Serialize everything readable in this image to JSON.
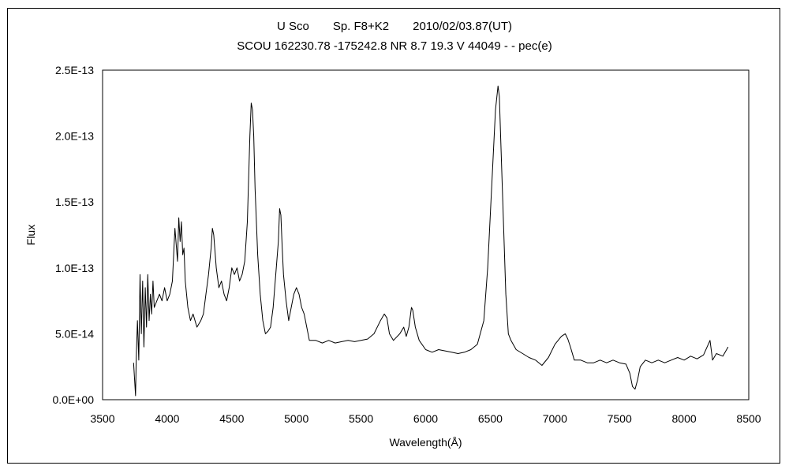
{
  "chart_data": {
    "type": "line",
    "title": "U Sco　　Sp. F8+K2　　2010/02/03.87(UT)",
    "subtitle": "SCOU 162230.78 -175242.8 NR 8.7 19.3 V 44049 - - pec(e)",
    "xlabel": "Wavelength(Å)",
    "ylabel": "Flux",
    "xlim": [
      3500,
      8500
    ],
    "ylim": [
      0,
      2.5e-13
    ],
    "grid": false,
    "legend": "none",
    "line_color": "#000000",
    "x_ticks": [
      "3500",
      "4000",
      "4500",
      "5000",
      "5500",
      "6000",
      "6500",
      "7000",
      "7500",
      "8000",
      "8500"
    ],
    "y_ticks": [
      "0.0E+00",
      "5.0E-14",
      "1.0E-13",
      "1.5E-13",
      "2.0E-13",
      "2.5E-13"
    ],
    "series": [
      {
        "x": [
          3740,
          3755,
          3760,
          3770,
          3780,
          3790,
          3800,
          3810,
          3820,
          3830,
          3840,
          3850,
          3860,
          3870,
          3880,
          3890,
          3900,
          3920,
          3940,
          3960,
          3980,
          4000,
          4020,
          4040,
          4060,
          4080,
          4090,
          4100,
          4110,
          4120,
          4130,
          4140,
          4160,
          4180,
          4200,
          4230,
          4260,
          4280,
          4300,
          4320,
          4340,
          4350,
          4360,
          4380,
          4400,
          4420,
          4440,
          4460,
          4480,
          4500,
          4520,
          4540,
          4560,
          4580,
          4600,
          4620,
          4640,
          4650,
          4660,
          4670,
          4680,
          4700,
          4720,
          4740,
          4760,
          4780,
          4800,
          4820,
          4840,
          4860,
          4870,
          4880,
          4890,
          4900,
          4920,
          4940,
          4960,
          4980,
          5000,
          5020,
          5040,
          5060,
          5080,
          5100,
          5150,
          5200,
          5250,
          5300,
          5350,
          5400,
          5450,
          5500,
          5550,
          5600,
          5650,
          5680,
          5700,
          5720,
          5750,
          5800,
          5830,
          5850,
          5870,
          5890,
          5900,
          5920,
          5950,
          6000,
          6050,
          6100,
          6150,
          6200,
          6250,
          6300,
          6350,
          6400,
          6450,
          6480,
          6500,
          6520,
          6540,
          6560,
          6570,
          6580,
          6600,
          6620,
          6640,
          6660,
          6700,
          6750,
          6800,
          6850,
          6900,
          6950,
          7000,
          7050,
          7080,
          7100,
          7120,
          7150,
          7200,
          7250,
          7300,
          7350,
          7400,
          7450,
          7500,
          7550,
          7580,
          7600,
          7620,
          7640,
          7660,
          7700,
          7750,
          7800,
          7850,
          7900,
          7950,
          8000,
          8050,
          8100,
          8150,
          8200,
          8220,
          8250,
          8300,
          8340
        ],
        "y": [
          2.8e-14,
          3e-15,
          3e-14,
          6e-14,
          3e-14,
          9.5e-14,
          5e-14,
          9e-14,
          4e-14,
          8.5e-14,
          5.5e-14,
          9.5e-14,
          6e-14,
          8e-14,
          6.5e-14,
          9e-14,
          7e-14,
          7.5e-14,
          8e-14,
          7.5e-14,
          8.5e-14,
          7.5e-14,
          8e-14,
          9e-14,
          1.3e-13,
          1.05e-13,
          1.38e-13,
          1.2e-13,
          1.35e-13,
          1.1e-13,
          1.15e-13,
          9e-14,
          7e-14,
          6e-14,
          6.5e-14,
          5.5e-14,
          6e-14,
          6.5e-14,
          8e-14,
          9.5e-14,
          1.15e-13,
          1.3e-13,
          1.25e-13,
          1e-13,
          8.5e-14,
          9e-14,
          8e-14,
          7.5e-14,
          8.5e-14,
          1e-13,
          9.5e-14,
          1e-13,
          9e-14,
          9.5e-14,
          1.05e-13,
          1.35e-13,
          2e-13,
          2.25e-13,
          2.2e-13,
          2e-13,
          1.6e-13,
          1.1e-13,
          8e-14,
          6e-14,
          5e-14,
          5.2e-14,
          5.5e-14,
          7e-14,
          9.5e-14,
          1.2e-13,
          1.45e-13,
          1.4e-13,
          1.15e-13,
          9.5e-14,
          7.5e-14,
          6e-14,
          7e-14,
          8e-14,
          8.5e-14,
          8e-14,
          7e-14,
          6.5e-14,
          5.5e-14,
          4.5e-14,
          4.5e-14,
          4.3e-14,
          4.5e-14,
          4.3e-14,
          4.4e-14,
          4.5e-14,
          4.4e-14,
          4.5e-14,
          4.6e-14,
          5e-14,
          6e-14,
          6.5e-14,
          6.2e-14,
          5e-14,
          4.5e-14,
          5e-14,
          5.5e-14,
          4.8e-14,
          5.5e-14,
          7e-14,
          6.8e-14,
          5.5e-14,
          4.5e-14,
          3.8e-14,
          3.6e-14,
          3.8e-14,
          3.7e-14,
          3.6e-14,
          3.5e-14,
          3.6e-14,
          3.8e-14,
          4.2e-14,
          6e-14,
          1e-13,
          1.4e-13,
          1.8e-13,
          2.2e-13,
          2.38e-13,
          2.3e-13,
          2e-13,
          1.4e-13,
          8e-14,
          5e-14,
          4.5e-14,
          3.8e-14,
          3.5e-14,
          3.2e-14,
          3e-14,
          2.6e-14,
          3.2e-14,
          4.2e-14,
          4.8e-14,
          5e-14,
          4.6e-14,
          4e-14,
          3e-14,
          3e-14,
          2.8e-14,
          2.8e-14,
          3e-14,
          2.8e-14,
          3e-14,
          2.8e-14,
          2.7e-14,
          2e-14,
          1e-14,
          8e-15,
          1.5e-14,
          2.5e-14,
          3e-14,
          2.8e-14,
          3e-14,
          2.8e-14,
          3e-14,
          3.2e-14,
          3e-14,
          3.3e-14,
          3.1e-14,
          3.4e-14,
          4.5e-14,
          3e-14,
          3.5e-14,
          3.3e-14,
          4e-14
        ]
      }
    ]
  }
}
